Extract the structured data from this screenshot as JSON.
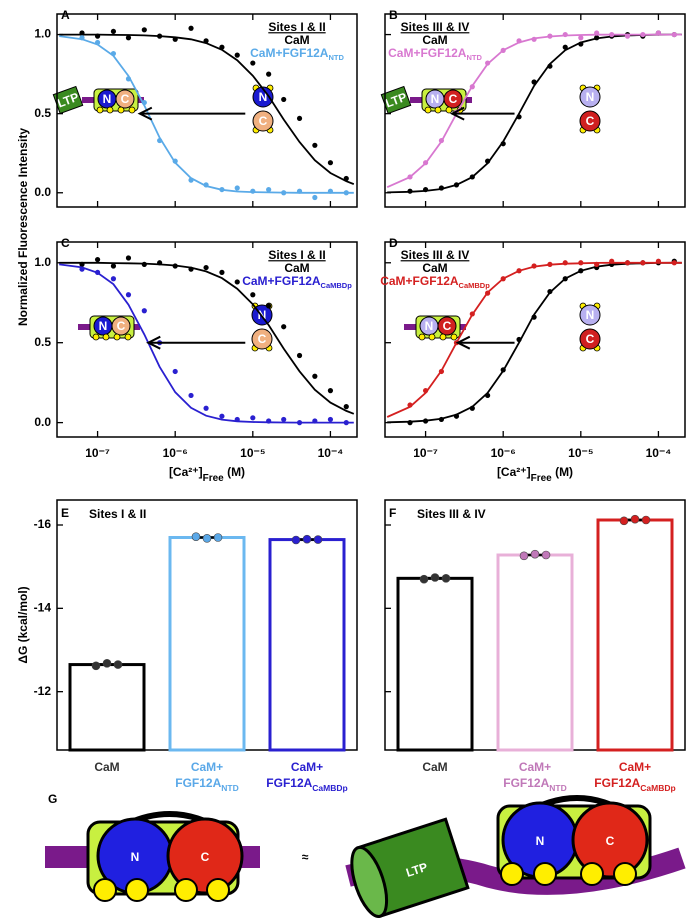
{
  "chart_data": [
    {
      "type": "scatter",
      "panel": "A",
      "title": "Sites I & II",
      "xscale": "log",
      "xlim": [
        3e-08,
        0.00022
      ],
      "xticks": [
        {
          "value": 1e-07,
          "label": "10⁻⁷"
        },
        {
          "value": 1e-06,
          "label": "10⁻⁶"
        },
        {
          "value": 1e-05,
          "label": "10⁻⁵"
        },
        {
          "value": 0.0001,
          "label": "10⁻⁴"
        }
      ],
      "show_xtick_labels": false,
      "ylim": [
        -0.09,
        1.13
      ],
      "yticks": [
        {
          "value": 0,
          "label": "0.0"
        },
        0.5,
        {
          "value": 1,
          "label": "1.0"
        }
      ],
      "show_ytick_labels": true,
      "legend_position": "upper right",
      "x": [
        6.3e-08,
        1e-07,
        1.6e-07,
        2.5e-07,
        4e-07,
        6.3e-07,
        1e-06,
        1.6e-06,
        2.5e-06,
        4e-06,
        6.3e-06,
        1e-05,
        1.6e-05,
        2.5e-05,
        4e-05,
        6.3e-05,
        0.0001,
        0.00016
      ],
      "fit_x": [
        3.2e-08,
        6.3e-08,
        1e-07,
        1.6e-07,
        2.5e-07,
        4e-07,
        6.3e-07,
        1e-06,
        1.6e-06,
        2.5e-06,
        4e-06,
        6.3e-06,
        1e-05,
        1.6e-05,
        2.5e-05,
        4e-05,
        6.3e-05,
        0.0001,
        0.00016,
        0.0002
      ],
      "series": [
        {
          "name": "CaM",
          "color": "#000000",
          "values": [
            1.01,
            0.99,
            1.02,
            0.98,
            1.03,
            0.99,
            0.97,
            1.04,
            0.96,
            0.92,
            0.87,
            0.82,
            0.75,
            0.59,
            0.47,
            0.3,
            0.19,
            0.09
          ],
          "fit": [
            1.0,
            1.0,
            1.0,
            0.998,
            0.997,
            0.995,
            0.99,
            0.983,
            0.97,
            0.946,
            0.904,
            0.838,
            0.74,
            0.61,
            0.463,
            0.321,
            0.206,
            0.125,
            0.073,
            0.055
          ]
        },
        {
          "name": "CaM+FGF12A",
          "name_sub": "NTD",
          "color": "#5aaae8",
          "values": [
            0.98,
            0.95,
            0.88,
            0.72,
            0.57,
            0.33,
            0.2,
            0.08,
            0.05,
            0.02,
            0.03,
            0.01,
            0.02,
            0.0,
            0.01,
            -0.03,
            0.01,
            0.0
          ],
          "fit": [
            0.99,
            0.971,
            0.937,
            0.866,
            0.738,
            0.552,
            0.349,
            0.19,
            0.093,
            0.043,
            0.019,
            0.008,
            0.004,
            0.002,
            0.001,
            0,
            0,
            0,
            0,
            0
          ]
        }
      ],
      "arrow": {
        "x": [
          8e-06,
          3.5e-07
        ],
        "y": 0.5
      }
    },
    {
      "type": "scatter",
      "panel": "B",
      "title": "Sites III & IV",
      "xscale": "log",
      "xlim": [
        3e-08,
        0.00022
      ],
      "xticks": [
        {
          "value": 1e-07,
          "label": "10⁻⁷"
        },
        {
          "value": 1e-06,
          "label": "10⁻⁶"
        },
        {
          "value": 1e-05,
          "label": "10⁻⁵"
        },
        {
          "value": 0.0001,
          "label": "10⁻⁴"
        }
      ],
      "show_xtick_labels": false,
      "ylim": [
        -0.09,
        1.13
      ],
      "yticks": [
        {
          "value": 0,
          "label": "0.0"
        },
        0.5,
        {
          "value": 1,
          "label": "1.0"
        }
      ],
      "show_ytick_labels": false,
      "legend_position": "upper left",
      "x": [
        6.3e-08,
        1e-07,
        1.6e-07,
        2.5e-07,
        4e-07,
        6.3e-07,
        1e-06,
        1.6e-06,
        2.5e-06,
        4e-06,
        6.3e-06,
        1e-05,
        1.6e-05,
        2.5e-05,
        4e-05,
        6.3e-05,
        0.0001,
        0.00016
      ],
      "fit_x": [
        3.2e-08,
        6.3e-08,
        1e-07,
        1.6e-07,
        2.5e-07,
        4e-07,
        6.3e-07,
        1e-06,
        1.6e-06,
        2.5e-06,
        4e-06,
        6.3e-06,
        1e-05,
        1.6e-05,
        2.5e-05,
        4e-05,
        6.3e-05,
        0.0001,
        0.00016,
        0.0002
      ],
      "series": [
        {
          "name": "CaM",
          "color": "#000000",
          "values": [
            0.01,
            0.02,
            0.03,
            0.05,
            0.1,
            0.2,
            0.31,
            0.48,
            0.7,
            0.8,
            0.92,
            0.94,
            0.98,
            0.99,
            1.0,
            0.99,
            1.01,
            1.0
          ],
          "fit": [
            0.002,
            0.006,
            0.012,
            0.024,
            0.05,
            0.099,
            0.186,
            0.324,
            0.5,
            0.676,
            0.814,
            0.901,
            0.95,
            0.976,
            0.988,
            0.994,
            0.997,
            0.999,
            1,
            1
          ]
        },
        {
          "name": "CaM+FGF12A",
          "name_sub": "NTD",
          "color": "#d878d0",
          "values": [
            0.1,
            0.19,
            0.33,
            0.51,
            0.67,
            0.82,
            0.9,
            0.96,
            0.97,
            0.99,
            1.0,
            0.98,
            1.01,
            1.0,
            0.99,
            1.0,
            1.01,
            1.0
          ],
          "fit": [
            0.035,
            0.099,
            0.186,
            0.324,
            0.5,
            0.676,
            0.814,
            0.901,
            0.95,
            0.976,
            0.988,
            0.994,
            0.997,
            0.999,
            1,
            1,
            1,
            1,
            1,
            1
          ]
        }
      ],
      "arrow": {
        "x": [
          1.4e-06,
          2.2e-07
        ],
        "y": 0.5
      }
    },
    {
      "type": "scatter",
      "panel": "C",
      "title": "Sites I & II",
      "xscale": "log",
      "xlim": [
        3e-08,
        0.00022
      ],
      "xticks": [
        {
          "value": 1e-07,
          "label": "10⁻⁷"
        },
        {
          "value": 1e-06,
          "label": "10⁻⁶"
        },
        {
          "value": 1e-05,
          "label": "10⁻⁵"
        },
        {
          "value": 0.0001,
          "label": "10⁻⁴"
        }
      ],
      "show_xtick_labels": true,
      "xlabel": {
        "text": "[Ca²⁺]",
        "sub": "Free",
        "tail": " (M)"
      },
      "ylim": [
        -0.09,
        1.13
      ],
      "yticks": [
        {
          "value": 0,
          "label": "0.0"
        },
        0.5,
        {
          "value": 1,
          "label": "1.0"
        }
      ],
      "show_ytick_labels": true,
      "legend_position": "upper right",
      "x": [
        6.3e-08,
        1e-07,
        1.6e-07,
        2.5e-07,
        4e-07,
        6.3e-07,
        1e-06,
        1.6e-06,
        2.5e-06,
        4e-06,
        6.3e-06,
        1e-05,
        1.6e-05,
        2.5e-05,
        4e-05,
        6.3e-05,
        0.0001,
        0.00016
      ],
      "fit_x": [
        3.2e-08,
        6.3e-08,
        1e-07,
        1.6e-07,
        2.5e-07,
        4e-07,
        6.3e-07,
        1e-06,
        1.6e-06,
        2.5e-06,
        4e-06,
        6.3e-06,
        1e-05,
        1.6e-05,
        2.5e-05,
        4e-05,
        6.3e-05,
        0.0001,
        0.00016,
        0.0002
      ],
      "series": [
        {
          "name": "CaM",
          "color": "#000000",
          "values": [
            0.99,
            1.02,
            0.98,
            1.03,
            0.99,
            1.0,
            0.98,
            0.96,
            0.97,
            0.94,
            0.88,
            0.8,
            0.73,
            0.6,
            0.42,
            0.29,
            0.2,
            0.1
          ],
          "fit": [
            1.0,
            1.0,
            1.0,
            0.998,
            0.997,
            0.995,
            0.99,
            0.983,
            0.97,
            0.946,
            0.904,
            0.838,
            0.74,
            0.61,
            0.463,
            0.321,
            0.206,
            0.125,
            0.073,
            0.055
          ]
        },
        {
          "name": "CaM+FGF12A",
          "name_sub": "CaMBDp",
          "color": "#2a20d0",
          "values": [
            0.96,
            0.94,
            0.9,
            0.8,
            0.7,
            0.5,
            0.32,
            0.17,
            0.09,
            0.04,
            0.02,
            0.03,
            0.01,
            0.02,
            0.0,
            0.01,
            0.02,
            0.0
          ],
          "fit": [
            0.99,
            0.971,
            0.937,
            0.866,
            0.738,
            0.552,
            0.349,
            0.19,
            0.093,
            0.043,
            0.019,
            0.008,
            0.004,
            0.002,
            0.001,
            0,
            0,
            0,
            0,
            0
          ]
        }
      ],
      "arrow": {
        "x": [
          8e-06,
          4.5e-07
        ],
        "y": 0.5
      }
    },
    {
      "type": "scatter",
      "panel": "D",
      "title": "Sites III & IV",
      "xscale": "log",
      "xlim": [
        3e-08,
        0.00022
      ],
      "xticks": [
        {
          "value": 1e-07,
          "label": "10⁻⁷"
        },
        {
          "value": 1e-06,
          "label": "10⁻⁶"
        },
        {
          "value": 1e-05,
          "label": "10⁻⁵"
        },
        {
          "value": 0.0001,
          "label": "10⁻⁴"
        }
      ],
      "show_xtick_labels": true,
      "xlabel": {
        "text": "[Ca²⁺]",
        "sub": "Free",
        "tail": " (M)"
      },
      "ylim": [
        -0.09,
        1.13
      ],
      "yticks": [
        {
          "value": 0,
          "label": "0.0"
        },
        0.5,
        {
          "value": 1,
          "label": "1.0"
        }
      ],
      "show_ytick_labels": false,
      "legend_position": "upper left",
      "x": [
        6.3e-08,
        1e-07,
        1.6e-07,
        2.5e-07,
        4e-07,
        6.3e-07,
        1e-06,
        1.6e-06,
        2.5e-06,
        4e-06,
        6.3e-06,
        1e-05,
        1.6e-05,
        2.5e-05,
        4e-05,
        6.3e-05,
        0.0001,
        0.00016
      ],
      "fit_x": [
        3.2e-08,
        6.3e-08,
        1e-07,
        1.6e-07,
        2.5e-07,
        4e-07,
        6.3e-07,
        1e-06,
        1.6e-06,
        2.5e-06,
        4e-06,
        6.3e-06,
        1e-05,
        1.6e-05,
        2.5e-05,
        4e-05,
        6.3e-05,
        0.0001,
        0.00016,
        0.0002
      ],
      "series": [
        {
          "name": "CaM",
          "color": "#000000",
          "values": [
            0.0,
            0.01,
            0.02,
            0.04,
            0.09,
            0.17,
            0.33,
            0.52,
            0.66,
            0.82,
            0.9,
            0.95,
            0.97,
            0.99,
            1.0,
            1.0,
            1.0,
            1.01
          ],
          "fit": [
            0.002,
            0.006,
            0.012,
            0.024,
            0.05,
            0.099,
            0.186,
            0.324,
            0.5,
            0.676,
            0.814,
            0.901,
            0.95,
            0.976,
            0.988,
            0.994,
            0.997,
            0.999,
            1,
            1
          ]
        },
        {
          "name": "CaM+FGF12A",
          "name_sub": "CaMBDp",
          "color": "#d42020",
          "values": [
            0.11,
            0.2,
            0.32,
            0.5,
            0.68,
            0.81,
            0.9,
            0.95,
            0.98,
            0.99,
            1.0,
            1.0,
            0.99,
            1.01,
            1.0,
            1.0,
            1.01,
            1.0
          ],
          "fit": [
            0.035,
            0.099,
            0.186,
            0.324,
            0.5,
            0.676,
            0.814,
            0.901,
            0.95,
            0.976,
            0.988,
            0.994,
            0.997,
            0.999,
            1,
            1,
            1,
            1,
            1,
            1
          ]
        }
      ],
      "arrow": {
        "x": [
          1.4e-06,
          2.6e-07
        ],
        "y": 0.5
      }
    },
    {
      "type": "bar",
      "panel": "E",
      "title": "Sites I & II",
      "ylim": [
        -10.6,
        -16.6
      ],
      "yticks": [
        -12,
        -14,
        -16
      ],
      "show_ytick_labels": true,
      "categories": [
        {
          "text": "CaM"
        },
        {
          "text": "CaM+",
          "line2": "FGF12A",
          "sub": "NTD"
        },
        {
          "text": "CaM+",
          "line2": "FGF12A",
          "sub": "CaMBDp"
        }
      ],
      "values": [
        -12.65,
        -15.7,
        -15.65
      ],
      "colors": [
        "#000000",
        "#6bb8f0",
        "#2a20d0"
      ],
      "point_colors": [
        "#333333",
        "#5aa8e8",
        "#2a20d0"
      ],
      "replicates": [
        [
          -12.62,
          -12.68,
          -12.65
        ],
        [
          -15.72,
          -15.68,
          -15.7
        ],
        [
          -15.64,
          -15.66,
          -15.65
        ]
      ]
    },
    {
      "type": "bar",
      "panel": "F",
      "title": "Sites III & IV",
      "ylim": [
        -10.6,
        -16.6
      ],
      "yticks": [
        -12,
        -14,
        -16
      ],
      "show_ytick_labels": false,
      "categories": [
        {
          "text": "CaM"
        },
        {
          "text": "CaM+",
          "line2": "FGF12A",
          "sub": "NTD"
        },
        {
          "text": "CaM+",
          "line2": "FGF12A",
          "sub": "CaMBDp"
        }
      ],
      "values": [
        -14.72,
        -15.28,
        -16.12
      ],
      "colors": [
        "#000000",
        "#e8b0d8",
        "#d42020"
      ],
      "point_colors": [
        "#333333",
        "#c078b8",
        "#d42020"
      ],
      "replicates": [
        [
          -14.7,
          -14.74,
          -14.72
        ],
        [
          -15.26,
          -15.3,
          -15.28
        ],
        [
          -16.1,
          -16.14,
          -16.12
        ]
      ]
    }
  ],
  "figure": {
    "ylabel_top": "Normalized Fluorescence Intensity",
    "ylabel_bottom": "ΔG (kcal/mol)"
  },
  "diagram": {
    "label": "G",
    "n": "N",
    "c": "C",
    "ltp": "LTP",
    "approx": "≈"
  }
}
